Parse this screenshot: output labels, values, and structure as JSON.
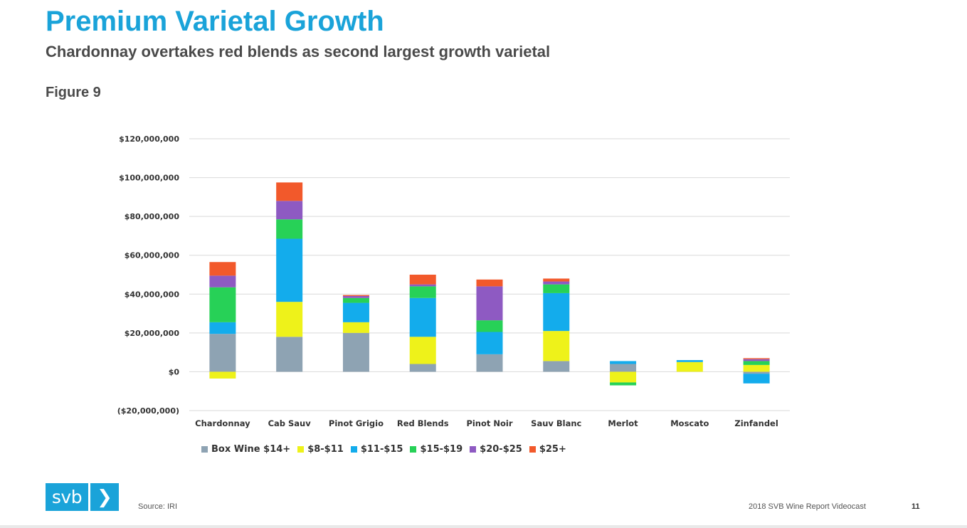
{
  "header": {
    "title": "Premium Varietal Growth",
    "subtitle": "Chardonnay overtakes red blends as second largest growth varietal",
    "figure_label": "Figure 9"
  },
  "footer": {
    "logo_text": "svb",
    "logo_chevron": "❯",
    "source": "Source: IRI",
    "report": "2018 SVB Wine Report Videocast",
    "page_number": "11"
  },
  "chart_data": {
    "type": "bar",
    "stacked": true,
    "categories": [
      "Chardonnay",
      "Cab Sauv",
      "Pinot Grigio",
      "Red Blends",
      "Pinot Noir",
      "Sauv Blanc",
      "Merlot",
      "Moscato",
      "Zinfandel"
    ],
    "y_ticks": [
      "$120,000,000",
      "$100,000,000",
      "$80,000,000",
      "$60,000,000",
      "$40,000,000",
      "$20,000,000",
      "$0",
      "($20,000,000)"
    ],
    "ylim": [
      -20000000,
      120000000
    ],
    "grid": true,
    "legend_position": "bottom",
    "series": [
      {
        "name": "Box Wine $14+",
        "color": "#8ea3b3",
        "values": [
          19500000,
          18000000,
          20000000,
          4000000,
          9000000,
          5500000,
          4000000,
          0,
          -1000000
        ]
      },
      {
        "name": "$8-$11",
        "color": "#eef21a",
        "values": [
          -3500000,
          18000000,
          5500000,
          14000000,
          0,
          15500000,
          -5500000,
          5000000,
          3500000
        ]
      },
      {
        "name": "$11-$15",
        "color": "#13acec",
        "values": [
          6000000,
          32500000,
          10000000,
          20000000,
          11500000,
          19500000,
          1500000,
          1000000,
          -5000000
        ]
      },
      {
        "name": "$15-$19",
        "color": "#27d157",
        "values": [
          18000000,
          10000000,
          2500000,
          6000000,
          6000000,
          4500000,
          -1500000,
          0,
          2000000
        ]
      },
      {
        "name": "$20-$25",
        "color": "#8e5ac2",
        "values": [
          6000000,
          9500000,
          1000000,
          1000000,
          17500000,
          1500000,
          0,
          0,
          1000000
        ]
      },
      {
        "name": "$25+",
        "color": "#f2592b",
        "values": [
          7000000,
          9500000,
          500000,
          5000000,
          3500000,
          1500000,
          0,
          0,
          500000
        ]
      }
    ]
  }
}
